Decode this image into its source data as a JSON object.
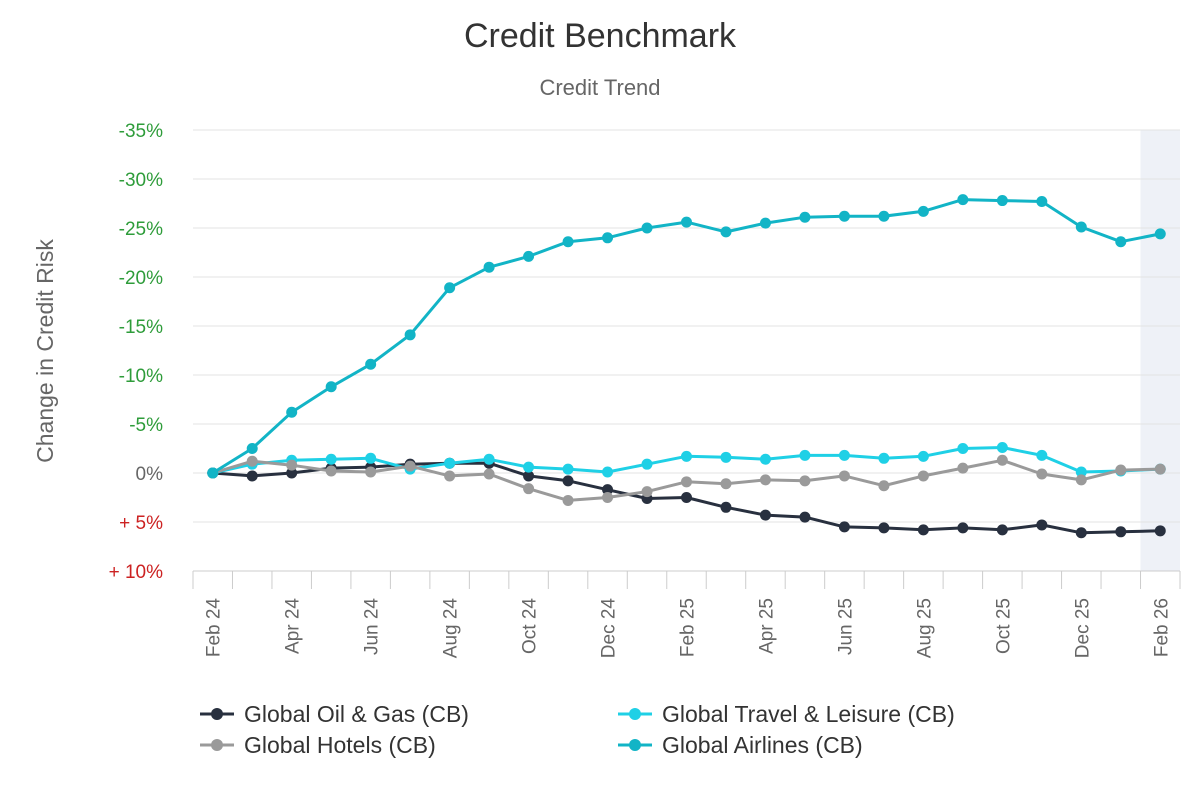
{
  "chart_data": {
    "type": "line",
    "title": "Credit Benchmark",
    "subtitle": "Credit Trend",
    "ylabel": "Change in Credit Risk",
    "xlabel": "",
    "ylim": [
      10,
      -35
    ],
    "y_ticks": [
      {
        "value": -35,
        "label": "-35%",
        "color": "#2e9c3a"
      },
      {
        "value": -30,
        "label": "-30%",
        "color": "#2e9c3a"
      },
      {
        "value": -25,
        "label": "-25%",
        "color": "#2e9c3a"
      },
      {
        "value": -20,
        "label": "-20%",
        "color": "#2e9c3a"
      },
      {
        "value": -15,
        "label": "-15%",
        "color": "#2e9c3a"
      },
      {
        "value": -10,
        "label": "-10%",
        "color": "#2e9c3a"
      },
      {
        "value": -5,
        "label": "-5%",
        "color": "#2e9c3a"
      },
      {
        "value": 0,
        "label": "0%",
        "color": "#666666"
      },
      {
        "value": 5,
        "label": "+ 5%",
        "color": "#cc2222"
      },
      {
        "value": 10,
        "label": "+ 10%",
        "color": "#cc2222"
      }
    ],
    "x": [
      "2024-02",
      "2024-03",
      "2024-04",
      "2024-05",
      "2024-06",
      "2024-07",
      "2024-08",
      "2024-09",
      "2024-10",
      "2024-11",
      "2024-12",
      "2025-01",
      "2025-02",
      "2025-03",
      "2025-04",
      "2025-05",
      "2025-06",
      "2025-07",
      "2025-08",
      "2025-09",
      "2025-10",
      "2025-11",
      "2025-12",
      "2026-01",
      "2026-02"
    ],
    "x_tick_labels": [
      "Feb 24",
      "Apr 24",
      "Jun 24",
      "Aug 24",
      "Oct 24",
      "Dec 24",
      "Feb 25",
      "Apr 25",
      "Jun 25",
      "Aug 25",
      "Oct 25",
      "Dec 25",
      "Feb 26"
    ],
    "x_tick_indices": [
      0,
      2,
      4,
      6,
      8,
      10,
      12,
      14,
      16,
      18,
      20,
      22,
      24
    ],
    "highlight_last_period": true,
    "highlight_color": "#eef1f7",
    "grid": true,
    "legend_position": "bottom",
    "series": [
      {
        "name": "Global Oil & Gas (CB)",
        "color": "#28303f",
        "values": [
          0,
          0.3,
          0,
          -0.5,
          -0.6,
          -0.9,
          -1.0,
          -1.0,
          0.3,
          0.8,
          1.7,
          2.6,
          2.5,
          3.5,
          4.3,
          4.5,
          5.5,
          5.6,
          5.8,
          5.6,
          5.8,
          5.3,
          6.1,
          6.0,
          5.9
        ]
      },
      {
        "name": "Global Travel & Leisure (CB)",
        "color": "#1fd0e6",
        "values": [
          0,
          -0.9,
          -1.3,
          -1.4,
          -1.5,
          -0.4,
          -1.0,
          -1.4,
          -0.6,
          -0.4,
          -0.1,
          -0.9,
          -1.7,
          -1.6,
          -1.4,
          -1.8,
          -1.8,
          -1.5,
          -1.7,
          -2.5,
          -2.6,
          -1.8,
          -0.1,
          -0.2,
          -0.4
        ]
      },
      {
        "name": "Global Hotels (CB)",
        "color": "#9a9a9a",
        "values": [
          0,
          -1.2,
          -0.8,
          -0.2,
          -0.1,
          -0.7,
          0.3,
          0.1,
          1.6,
          2.8,
          2.5,
          1.9,
          0.9,
          1.1,
          0.7,
          0.8,
          0.3,
          1.3,
          0.3,
          -0.5,
          -1.3,
          0.1,
          0.7,
          -0.3,
          -0.4
        ]
      },
      {
        "name": "Global Airlines (CB)",
        "color": "#12b4c6",
        "values": [
          0,
          -2.5,
          -6.2,
          -8.8,
          -11.1,
          -14.1,
          -18.9,
          -21.0,
          -22.1,
          -23.6,
          -24.0,
          -25.0,
          -25.6,
          -24.6,
          -25.5,
          -26.1,
          -26.2,
          -26.2,
          -26.7,
          -27.9,
          -27.8,
          -27.7,
          -25.1,
          -23.6,
          -24.4
        ]
      }
    ]
  }
}
